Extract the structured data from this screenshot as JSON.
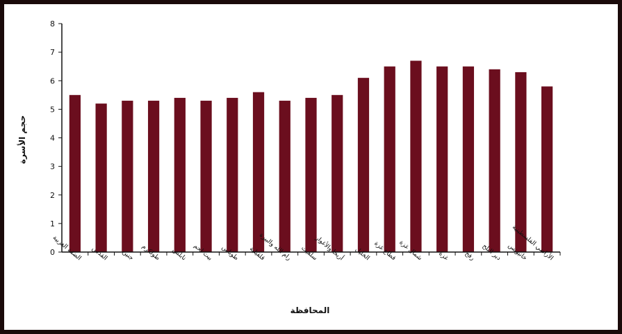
{
  "chart_data": {
    "type": "bar",
    "title": "",
    "xlabel": "المحافظة",
    "ylabel": "حجم الأسرة",
    "ylim": [
      0,
      8
    ],
    "yticks": [
      0,
      1,
      2,
      3,
      4,
      5,
      6,
      7,
      8
    ],
    "grid": false,
    "legend": "none",
    "bar_color": "#6b0e1e",
    "categories": [
      "الضفة الغربية",
      "القدس",
      "جنين",
      "طولكرم",
      "نابلس",
      "بيت لحم",
      "طوباس",
      "قلقيلية",
      "رام الله والبيرة",
      "سلفيت",
      "أريحا والأغوار",
      "الخليل",
      "قطاع غزة",
      "شمال غزة",
      "غزة",
      "رفح",
      "دير البلح",
      "خانيونس",
      "الأراضي الفلسطينية"
    ],
    "values": [
      5.5,
      5.2,
      5.3,
      5.3,
      5.4,
      5.3,
      5.4,
      5.6,
      5.3,
      5.4,
      5.5,
      6.1,
      6.5,
      6.7,
      6.5,
      6.5,
      6.4,
      6.3,
      5.8
    ]
  }
}
